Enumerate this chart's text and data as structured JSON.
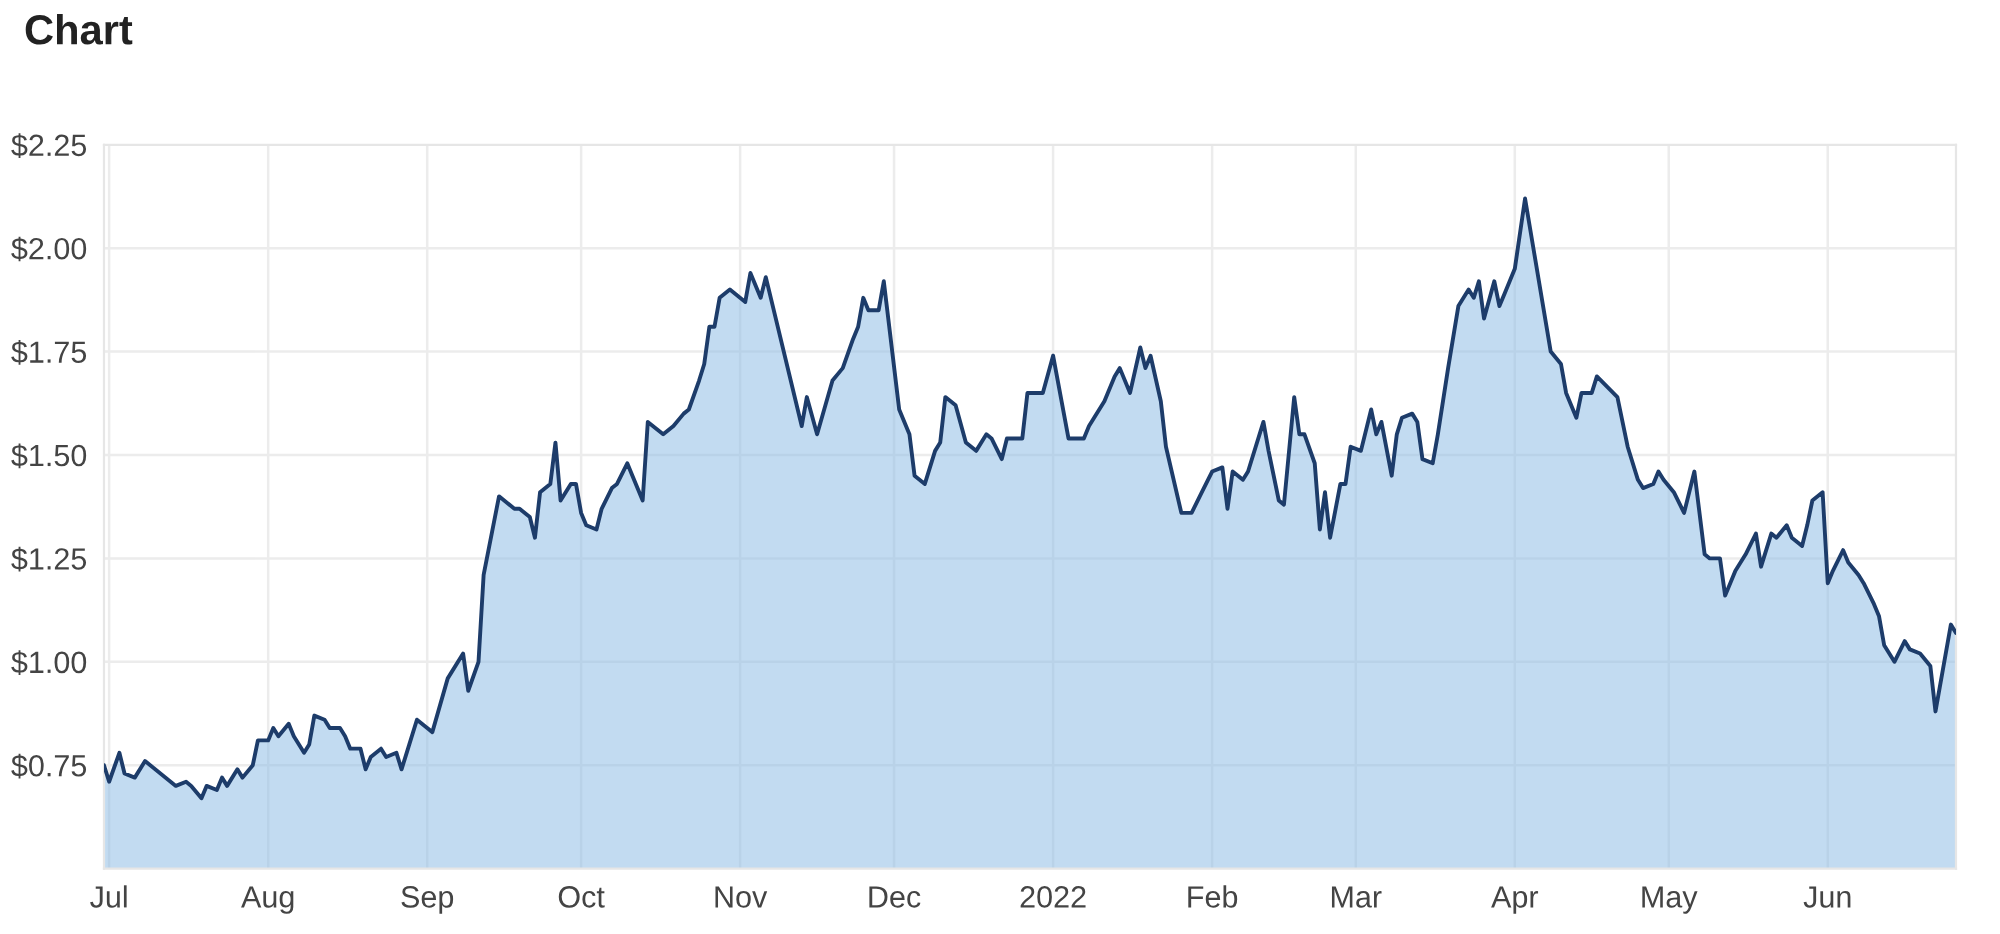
{
  "chart_data": {
    "type": "area",
    "title": "Chart",
    "x": [
      "2021-06-30",
      "2021-07-01",
      "2021-07-03",
      "2021-07-04",
      "2021-07-06",
      "2021-07-08",
      "2021-07-14",
      "2021-07-16",
      "2021-07-17",
      "2021-07-19",
      "2021-07-20",
      "2021-07-22",
      "2021-07-23",
      "2021-07-24",
      "2021-07-26",
      "2021-07-27",
      "2021-07-29",
      "2021-07-30",
      "2021-08-01",
      "2021-08-02",
      "2021-08-03",
      "2021-08-05",
      "2021-08-06",
      "2021-08-08",
      "2021-08-09",
      "2021-08-10",
      "2021-08-12",
      "2021-08-13",
      "2021-08-15",
      "2021-08-16",
      "2021-08-17",
      "2021-08-19",
      "2021-08-20",
      "2021-08-21",
      "2021-08-23",
      "2021-08-24",
      "2021-08-26",
      "2021-08-27",
      "2021-08-28",
      "2021-08-30",
      "2021-09-01",
      "2021-09-02",
      "2021-09-05",
      "2021-09-08",
      "2021-09-09",
      "2021-09-11",
      "2021-09-12",
      "2021-09-15",
      "2021-09-18",
      "2021-09-19",
      "2021-09-21",
      "2021-09-22",
      "2021-09-23",
      "2021-09-25",
      "2021-09-26",
      "2021-09-27",
      "2021-09-29",
      "2021-09-30",
      "2021-10-01",
      "2021-10-02",
      "2021-10-04",
      "2021-10-05",
      "2021-10-07",
      "2021-10-08",
      "2021-10-10",
      "2021-10-11",
      "2021-10-13",
      "2021-10-14",
      "2021-10-17",
      "2021-10-19",
      "2021-10-21",
      "2021-10-22",
      "2021-10-24",
      "2021-10-25",
      "2021-10-26",
      "2021-10-27",
      "2021-10-28",
      "2021-10-30",
      "2021-11-02",
      "2021-11-03",
      "2021-11-05",
      "2021-11-06",
      "2021-11-13",
      "2021-11-14",
      "2021-11-16",
      "2021-11-19",
      "2021-11-21",
      "2021-11-23",
      "2021-11-24",
      "2021-11-25",
      "2021-11-26",
      "2021-11-28",
      "2021-11-29",
      "2021-12-02",
      "2021-12-04",
      "2021-12-05",
      "2021-12-07",
      "2021-12-09",
      "2021-12-10",
      "2021-12-11",
      "2021-12-13",
      "2021-12-15",
      "2021-12-17",
      "2021-12-19",
      "2021-12-20",
      "2021-12-22",
      "2021-12-23",
      "2021-12-25",
      "2021-12-26",
      "2021-12-27",
      "2021-12-30",
      "2022-01-01",
      "2022-01-04",
      "2022-01-07",
      "2022-01-08",
      "2022-01-11",
      "2022-01-13",
      "2022-01-14",
      "2022-01-16",
      "2022-01-18",
      "2022-01-19",
      "2022-01-20",
      "2022-01-22",
      "2022-01-23",
      "2022-01-26",
      "2022-01-28",
      "2022-01-30",
      "2022-02-01",
      "2022-02-03",
      "2022-02-04",
      "2022-02-05",
      "2022-02-07",
      "2022-02-08",
      "2022-02-11",
      "2022-02-12",
      "2022-02-14",
      "2022-02-15",
      "2022-02-17",
      "2022-02-18",
      "2022-02-19",
      "2022-02-21",
      "2022-02-22",
      "2022-02-23",
      "2022-02-24",
      "2022-02-26",
      "2022-02-27",
      "2022-02-28",
      "2022-03-02",
      "2022-03-04",
      "2022-03-05",
      "2022-03-06",
      "2022-03-08",
      "2022-03-09",
      "2022-03-10",
      "2022-03-12",
      "2022-03-13",
      "2022-03-14",
      "2022-03-16",
      "2022-03-17",
      "2022-03-19",
      "2022-03-21",
      "2022-03-23",
      "2022-03-24",
      "2022-03-25",
      "2022-03-26",
      "2022-03-28",
      "2022-03-29",
      "2022-03-30",
      "2022-04-01",
      "2022-04-03",
      "2022-04-08",
      "2022-04-10",
      "2022-04-11",
      "2022-04-13",
      "2022-04-14",
      "2022-04-16",
      "2022-04-17",
      "2022-04-21",
      "2022-04-23",
      "2022-04-25",
      "2022-04-26",
      "2022-04-28",
      "2022-04-29",
      "2022-04-30",
      "2022-05-02",
      "2022-05-04",
      "2022-05-06",
      "2022-05-08",
      "2022-05-09",
      "2022-05-11",
      "2022-05-12",
      "2022-05-14",
      "2022-05-16",
      "2022-05-18",
      "2022-05-19",
      "2022-05-21",
      "2022-05-22",
      "2022-05-24",
      "2022-05-25",
      "2022-05-27",
      "2022-05-28",
      "2022-05-29",
      "2022-05-31",
      "2022-06-01",
      "2022-06-02",
      "2022-06-04",
      "2022-06-05",
      "2022-06-07",
      "2022-06-08",
      "2022-06-10",
      "2022-06-11",
      "2022-06-12",
      "2022-06-14",
      "2022-06-16",
      "2022-06-17",
      "2022-06-19",
      "2022-06-21",
      "2022-06-22",
      "2022-06-25",
      "2022-06-26"
    ],
    "series": [
      {
        "color": "#1d3c6a",
        "values": [
          0.75,
          0.71,
          0.78,
          0.73,
          0.72,
          0.76,
          0.7,
          0.71,
          0.7,
          0.67,
          0.7,
          0.69,
          0.72,
          0.7,
          0.74,
          0.72,
          0.75,
          0.81,
          0.81,
          0.84,
          0.82,
          0.85,
          0.82,
          0.78,
          0.8,
          0.87,
          0.86,
          0.84,
          0.84,
          0.82,
          0.79,
          0.79,
          0.74,
          0.77,
          0.79,
          0.77,
          0.78,
          0.74,
          0.78,
          0.86,
          0.84,
          0.83,
          0.96,
          1.02,
          0.93,
          1.0,
          1.21,
          1.4,
          1.37,
          1.37,
          1.35,
          1.3,
          1.41,
          1.43,
          1.53,
          1.39,
          1.43,
          1.43,
          1.36,
          1.33,
          1.32,
          1.37,
          1.42,
          1.43,
          1.48,
          1.45,
          1.39,
          1.58,
          1.55,
          1.57,
          1.6,
          1.61,
          1.68,
          1.72,
          1.81,
          1.81,
          1.88,
          1.9,
          1.87,
          1.94,
          1.88,
          1.93,
          1.57,
          1.64,
          1.55,
          1.68,
          1.71,
          1.78,
          1.81,
          1.88,
          1.85,
          1.85,
          1.92,
          1.61,
          1.55,
          1.45,
          1.43,
          1.51,
          1.53,
          1.64,
          1.62,
          1.53,
          1.51,
          1.55,
          1.54,
          1.49,
          1.54,
          1.54,
          1.54,
          1.65,
          1.65,
          1.74,
          1.54,
          1.54,
          1.57,
          1.63,
          1.69,
          1.71,
          1.65,
          1.76,
          1.71,
          1.74,
          1.63,
          1.52,
          1.36,
          1.36,
          1.41,
          1.46,
          1.47,
          1.37,
          1.46,
          1.44,
          1.46,
          1.58,
          1.51,
          1.39,
          1.38,
          1.64,
          1.55,
          1.55,
          1.48,
          1.32,
          1.41,
          1.3,
          1.43,
          1.43,
          1.52,
          1.51,
          1.61,
          1.55,
          1.58,
          1.45,
          1.55,
          1.59,
          1.6,
          1.58,
          1.49,
          1.48,
          1.55,
          1.71,
          1.86,
          1.9,
          1.88,
          1.92,
          1.83,
          1.92,
          1.86,
          1.89,
          1.95,
          2.12,
          1.75,
          1.72,
          1.65,
          1.59,
          1.65,
          1.65,
          1.69,
          1.64,
          1.52,
          1.44,
          1.42,
          1.43,
          1.46,
          1.44,
          1.41,
          1.36,
          1.46,
          1.26,
          1.25,
          1.25,
          1.16,
          1.22,
          1.26,
          1.31,
          1.23,
          1.31,
          1.3,
          1.33,
          1.3,
          1.28,
          1.33,
          1.39,
          1.41,
          1.19,
          1.22,
          1.27,
          1.24,
          1.21,
          1.19,
          1.14,
          1.11,
          1.04,
          1.0,
          1.05,
          1.03,
          1.02,
          0.99,
          0.88,
          1.09,
          1.07
        ]
      }
    ],
    "xlim": [
      "2021-06-30",
      "2022-06-26"
    ],
    "xticks": [
      {
        "value": "2021-07-01",
        "label": "Jul"
      },
      {
        "value": "2021-08-01",
        "label": "Aug"
      },
      {
        "value": "2021-09-01",
        "label": "Sep"
      },
      {
        "value": "2021-10-01",
        "label": "Oct"
      },
      {
        "value": "2021-11-01",
        "label": "Nov"
      },
      {
        "value": "2021-12-01",
        "label": "Dec"
      },
      {
        "value": "2022-01-01",
        "label": "2022"
      },
      {
        "value": "2022-02-01",
        "label": "Feb"
      },
      {
        "value": "2022-03-01",
        "label": "Mar"
      },
      {
        "value": "2022-04-01",
        "label": "Apr"
      },
      {
        "value": "2022-05-01",
        "label": "May"
      },
      {
        "value": "2022-06-01",
        "label": "Jun"
      }
    ],
    "ylim": [
      0.5,
      2.25
    ],
    "yticks": [
      {
        "value": 0.75,
        "label": "$0.75"
      },
      {
        "value": 1.0,
        "label": "$1.00"
      },
      {
        "value": 1.25,
        "label": "$1.25"
      },
      {
        "value": 1.5,
        "label": "$1.50"
      },
      {
        "value": 1.75,
        "label": "$1.75"
      },
      {
        "value": 2.0,
        "label": "$2.00"
      },
      {
        "value": 2.25,
        "label": "$2.25"
      }
    ],
    "grid": true
  }
}
